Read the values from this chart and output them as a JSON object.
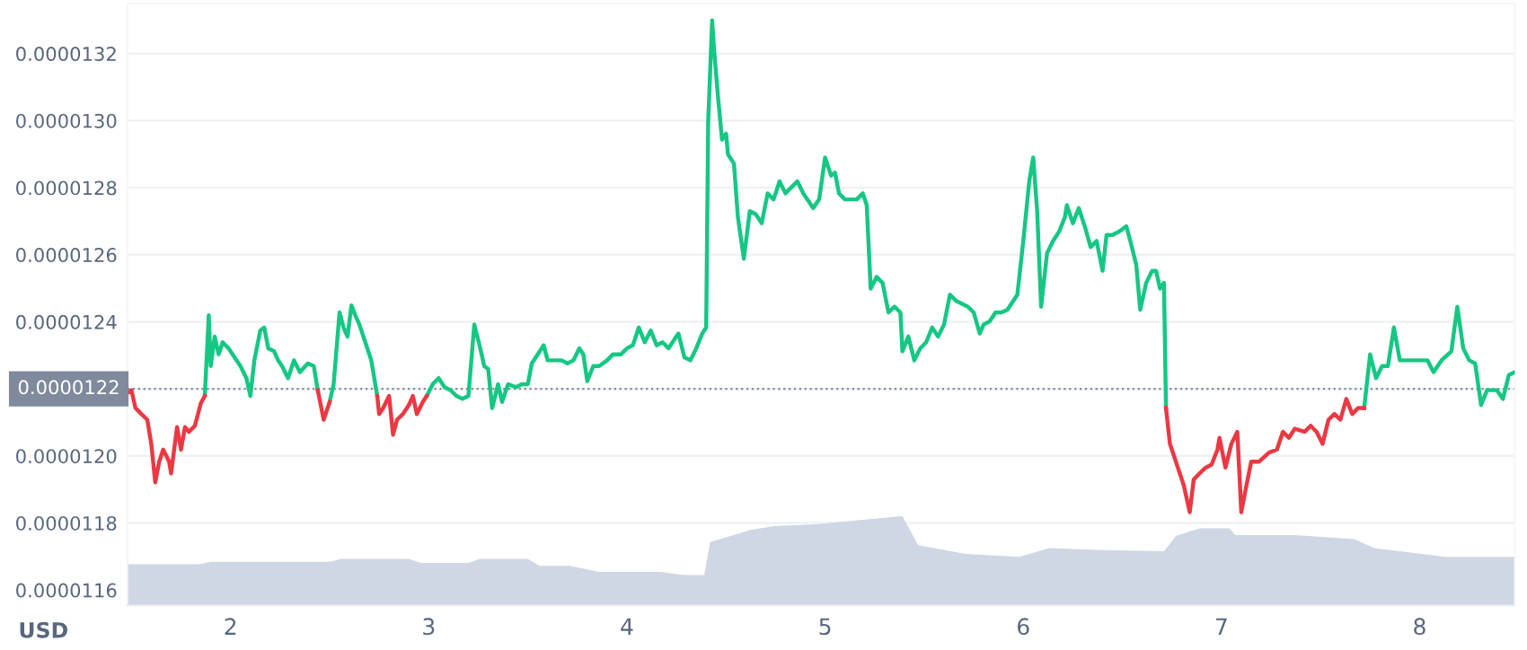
{
  "chart_data": {
    "type": "line",
    "xlim": [
      1.48,
      8.48
    ],
    "xticks": [
      2,
      3,
      4,
      5,
      6,
      7,
      8
    ],
    "ylim": [
      1.1555e-05,
      1.335e-05
    ],
    "yticks": [
      {
        "value": 1.16e-05,
        "label": "0.0000116"
      },
      {
        "value": 1.18e-05,
        "label": "0.0000118"
      },
      {
        "value": 1.2e-05,
        "label": "0.0000120"
      },
      {
        "value": 1.22e-05,
        "label": null
      },
      {
        "value": 1.24e-05,
        "label": "0.0000124"
      },
      {
        "value": 1.26e-05,
        "label": "0.0000126"
      },
      {
        "value": 1.28e-05,
        "label": "0.0000128"
      },
      {
        "value": 1.3e-05,
        "label": "0.0000130"
      },
      {
        "value": 1.32e-05,
        "label": "0.0000132"
      }
    ],
    "grid": "y",
    "ref_lines": [
      {
        "axis": "y",
        "value": 1.22e-05,
        "label": "0.0000122",
        "color": "#808a9d",
        "line_style": "dotted"
      }
    ],
    "annotations": [
      "USD"
    ],
    "series": [
      {
        "type": "area",
        "color": "#cfd6e4",
        "x": [
          1.48,
          1.84,
          1.9,
          2.5,
          2.56,
          2.9,
          2.96,
          3.2,
          3.26,
          3.5,
          3.56,
          3.71,
          3.86,
          4.17,
          4.29,
          4.39,
          4.42,
          4.62,
          4.74,
          4.95,
          5.38,
          5.39,
          5.47,
          5.71,
          5.98,
          6.13,
          6.37,
          6.71,
          6.77,
          6.89,
          7.04,
          7.07,
          7.37,
          7.67,
          7.77,
          8.13,
          8.48
        ],
        "values": [
          1.1677e-05,
          1.1677e-05,
          1.1684e-05,
          1.1684e-05,
          1.1693e-05,
          1.1693e-05,
          1.1681e-05,
          1.1681e-05,
          1.1693e-05,
          1.1693e-05,
          1.1672e-05,
          1.1672e-05,
          1.1654e-05,
          1.1654e-05,
          1.1645e-05,
          1.1645e-05,
          1.1743e-05,
          1.1779e-05,
          1.1791e-05,
          1.1796e-05,
          1.182e-05,
          1.182e-05,
          1.1734e-05,
          1.1708e-05,
          1.1699e-05,
          1.1725e-05,
          1.172e-05,
          1.1716e-05,
          1.1761e-05,
          1.1784e-05,
          1.1784e-05,
          1.1764e-05,
          1.1764e-05,
          1.1752e-05,
          1.1725e-05,
          1.1699e-05,
          1.1699e-05
        ]
      },
      {
        "color": "#16c784",
        "x": [
          1.87,
          1.89,
          1.9,
          1.92,
          1.94,
          1.96,
          1.99,
          2.02,
          2.05,
          2.08,
          2.1,
          2.12,
          2.15,
          2.17,
          2.19,
          2.22,
          2.24,
          2.26,
          2.29,
          2.32,
          2.35,
          2.39,
          2.42,
          2.44,
          2.47,
          2.5,
          2.52,
          2.55,
          2.57,
          2.59,
          2.61,
          2.63,
          2.65,
          2.68,
          2.71,
          2.74,
          2.75,
          2.77,
          2.8,
          2.82,
          2.84,
          2.87,
          2.9,
          2.92,
          2.94,
          2.97,
          2.99,
          3.02,
          3.05,
          3.08,
          3.11,
          3.14,
          3.17,
          3.2,
          3.23,
          3.26,
          3.28,
          3.3,
          3.32,
          3.35,
          3.37,
          3.4,
          3.44,
          3.47,
          3.5,
          3.52,
          3.55,
          3.58,
          3.6,
          3.64,
          3.67,
          3.7,
          3.73,
          3.76,
          3.78,
          3.8,
          3.83,
          3.86,
          3.9,
          3.93,
          3.97,
          4.0,
          4.03,
          4.06,
          4.09,
          4.12,
          4.15,
          4.18,
          4.21,
          4.24,
          4.26,
          4.29,
          4.32,
          4.35,
          4.38,
          4.4,
          4.41,
          4.43,
          4.44,
          4.46,
          4.48,
          4.5,
          4.51,
          4.54,
          4.56,
          4.59,
          4.62,
          4.65,
          4.68,
          4.71,
          4.74,
          4.77,
          4.8,
          4.83,
          4.86,
          4.89,
          4.94,
          4.97,
          5.0,
          5.03,
          5.05,
          5.07,
          5.1,
          5.13,
          5.16,
          5.19,
          5.21,
          5.23,
          5.26,
          5.29,
          5.32,
          5.35,
          5.38,
          5.39,
          5.42,
          5.45,
          5.48,
          5.51,
          5.54,
          5.57,
          5.6,
          5.63,
          5.66,
          5.69,
          5.72,
          5.75,
          5.78,
          5.8,
          5.83,
          5.86,
          5.89,
          5.92,
          5.95,
          5.97,
          6.0,
          6.03,
          6.05,
          6.07,
          6.09,
          6.12,
          6.15,
          6.18,
          6.21,
          6.22,
          6.25,
          6.28,
          6.31,
          6.34,
          6.37,
          6.4,
          6.42,
          6.45,
          6.48,
          6.5,
          6.52,
          6.54,
          6.57,
          6.59,
          6.62,
          6.65,
          6.67,
          6.69,
          6.71,
          6.72,
          6.74,
          7.69,
          7.72,
          7.75,
          7.78,
          7.81,
          7.84,
          7.87,
          7.9,
          7.95,
          7.99,
          8.04,
          8.07,
          8.11,
          8.16,
          8.19,
          8.22,
          8.25,
          8.28,
          8.31,
          8.34,
          8.39,
          8.42,
          8.45,
          8.48
        ],
        "values": [
          1.2179e-05,
          1.2419e-05,
          1.2268e-05,
          1.2356e-05,
          1.2303e-05,
          1.2339e-05,
          1.2321e-05,
          1.2294e-05,
          1.2268e-05,
          1.2232e-05,
          1.2179e-05,
          1.2285e-05,
          1.2374e-05,
          1.2383e-05,
          1.2321e-05,
          1.2312e-05,
          1.2285e-05,
          1.2268e-05,
          1.2232e-05,
          1.2285e-05,
          1.225e-05,
          1.2276e-05,
          1.2268e-05,
          1.2196e-05,
          null,
          1.2161e-05,
          1.2214e-05,
          1.2428e-05,
          1.2383e-05,
          1.2356e-05,
          1.2449e-05,
          1.2419e-05,
          1.2392e-05,
          1.2339e-05,
          1.2285e-05,
          1.2179e-05,
          null,
          null,
          null,
          null,
          null,
          null,
          null,
          null,
          null,
          null,
          1.2179e-05,
          1.2214e-05,
          1.2232e-05,
          1.2205e-05,
          1.2196e-05,
          1.2179e-05,
          1.217e-05,
          1.2179e-05,
          1.2392e-05,
          1.2321e-05,
          1.2268e-05,
          1.2259e-05,
          1.2143e-05,
          1.2214e-05,
          1.2161e-05,
          1.2214e-05,
          1.2205e-05,
          1.2214e-05,
          1.2214e-05,
          1.2276e-05,
          1.2303e-05,
          1.233e-05,
          1.2285e-05,
          1.2285e-05,
          1.2285e-05,
          1.2276e-05,
          1.2285e-05,
          1.2321e-05,
          1.2303e-05,
          1.2223e-05,
          1.2268e-05,
          1.2268e-05,
          1.2285e-05,
          1.2303e-05,
          1.2303e-05,
          1.2321e-05,
          1.233e-05,
          1.2383e-05,
          1.2339e-05,
          1.2374e-05,
          1.233e-05,
          1.2339e-05,
          1.2321e-05,
          1.2348e-05,
          1.2365e-05,
          1.2294e-05,
          1.2285e-05,
          1.2321e-05,
          1.2365e-05,
          1.2383e-05,
          1.2996e-05,
          1.3299e-05,
          1.321e-05,
          1.3068e-05,
          1.2943e-05,
          1.2961e-05,
          1.2899e-05,
          1.2872e-05,
          1.2712e-05,
          1.2588e-05,
          1.273e-05,
          1.2721e-05,
          1.2694e-05,
          1.2783e-05,
          1.2765e-05,
          1.2819e-05,
          1.2783e-05,
          1.2801e-05,
          1.2819e-05,
          1.2783e-05,
          1.2739e-05,
          1.2765e-05,
          1.289e-05,
          1.2836e-05,
          1.2845e-05,
          1.2783e-05,
          1.2765e-05,
          1.2765e-05,
          1.2765e-05,
          1.2783e-05,
          1.2748e-05,
          1.2499e-05,
          1.2534e-05,
          1.2516e-05,
          1.2428e-05,
          1.2445e-05,
          1.2428e-05,
          1.2312e-05,
          1.2356e-05,
          1.2285e-05,
          1.2321e-05,
          1.2339e-05,
          1.2383e-05,
          1.2356e-05,
          1.2392e-05,
          1.2481e-05,
          1.2463e-05,
          1.2454e-05,
          1.2445e-05,
          1.2428e-05,
          1.2365e-05,
          1.2392e-05,
          1.2401e-05,
          1.2428e-05,
          1.2428e-05,
          1.2436e-05,
          1.2463e-05,
          1.2481e-05,
          1.2641e-05,
          1.2819e-05,
          1.289e-05,
          1.273e-05,
          1.2445e-05,
          1.2605e-05,
          1.2641e-05,
          1.2668e-05,
          1.2712e-05,
          1.2748e-05,
          1.2694e-05,
          1.2739e-05,
          1.2685e-05,
          1.2623e-05,
          1.2641e-05,
          1.2552e-05,
          1.2659e-05,
          1.2659e-05,
          1.2668e-05,
          1.2676e-05,
          1.2685e-05,
          1.2641e-05,
          1.257e-05,
          1.2436e-05,
          1.2516e-05,
          1.2552e-05,
          1.2552e-05,
          1.2499e-05,
          1.2516e-05,
          1.2143e-05,
          null,
          null,
          1.2143e-05,
          1.2303e-05,
          1.2232e-05,
          1.2268e-05,
          1.2268e-05,
          1.2383e-05,
          1.2285e-05,
          1.2285e-05,
          1.2285e-05,
          1.2285e-05,
          1.225e-05,
          1.2285e-05,
          1.2312e-05,
          1.2445e-05,
          1.2321e-05,
          1.2285e-05,
          1.2276e-05,
          1.2152e-05,
          1.2196e-05,
          1.2196e-05,
          1.217e-05,
          1.2241e-05,
          1.225e-05
        ]
      },
      {
        "color": "#ea3943",
        "x": [
          1.48,
          1.5,
          1.52,
          1.55,
          1.58,
          1.6,
          1.62,
          1.64,
          1.66,
          1.69,
          1.7,
          1.73,
          1.75,
          1.77,
          1.79,
          1.82,
          1.85,
          1.87,
          1.88,
          2.44,
          2.47,
          2.5,
          2.6,
          2.74,
          2.75,
          2.77,
          2.8,
          2.82,
          2.84,
          2.87,
          2.9,
          2.92,
          2.94,
          2.97,
          2.99,
          5.0,
          6.72,
          6.74,
          6.76,
          6.78,
          6.81,
          6.84,
          6.86,
          6.89,
          6.92,
          6.95,
          6.98,
          6.99,
          7.02,
          7.05,
          7.08,
          7.1,
          7.12,
          7.15,
          7.19,
          7.24,
          7.28,
          7.31,
          7.34,
          7.37,
          7.42,
          7.45,
          7.48,
          7.51,
          7.54,
          7.57,
          7.6,
          7.63,
          7.66,
          7.69,
          7.72
        ],
        "values": [
          1.2188e-05,
          1.2196e-05,
          1.2143e-05,
          1.2125e-05,
          1.2108e-05,
          1.2036e-05,
          1.1921e-05,
          1.1983e-05,
          1.2019e-05,
          1.1983e-05,
          1.1948e-05,
          1.2086e-05,
          1.2019e-05,
          1.2086e-05,
          1.2072e-05,
          1.209e-05,
          1.2157e-05,
          1.2179e-05,
          null,
          1.2196e-05,
          1.2108e-05,
          1.2161e-05,
          null,
          1.2179e-05,
          1.2125e-05,
          1.2143e-05,
          1.2179e-05,
          1.2063e-05,
          1.2108e-05,
          1.2125e-05,
          1.2152e-05,
          1.2179e-05,
          1.2125e-05,
          1.2161e-05,
          1.2179e-05,
          null,
          1.2143e-05,
          1.2036e-05,
          1.2001e-05,
          1.1965e-05,
          1.1912e-05,
          1.1832e-05,
          1.193e-05,
          1.1948e-05,
          1.1965e-05,
          1.1974e-05,
          1.2019e-05,
          1.2054e-05,
          1.1965e-05,
          1.2036e-05,
          1.2072e-05,
          1.1832e-05,
          1.1894e-05,
          1.1983e-05,
          1.1983e-05,
          1.201e-05,
          1.2019e-05,
          1.2072e-05,
          1.2054e-05,
          1.2081e-05,
          1.2072e-05,
          1.209e-05,
          1.2072e-05,
          1.2036e-05,
          1.2108e-05,
          1.2125e-05,
          1.2108e-05,
          1.217e-05,
          1.2125e-05,
          1.2143e-05,
          1.2143e-05
        ]
      }
    ]
  }
}
